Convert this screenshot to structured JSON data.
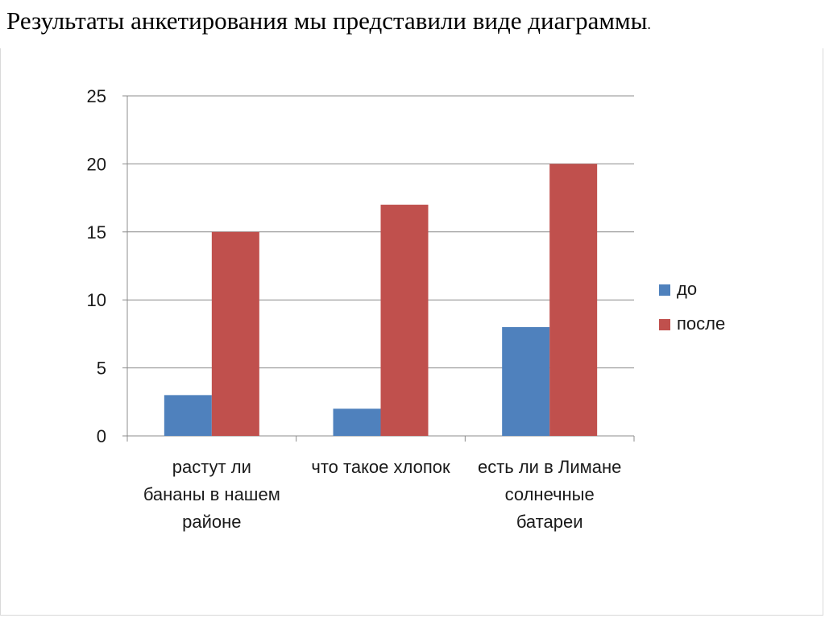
{
  "slide": {
    "heading_main": "Результаты анкетирования мы представили виде диаграммы",
    "heading_period": "."
  },
  "chart_data": {
    "type": "bar",
    "categories": [
      [
        "растут ли",
        "бананы в нашем",
        "районе"
      ],
      [
        "что такое хлопок"
      ],
      [
        "есть ли в Лимане",
        "солнечные",
        "батареи"
      ]
    ],
    "series": [
      {
        "name": "до",
        "values": [
          3,
          2,
          8
        ],
        "color": "#4f81bd"
      },
      {
        "name": "после",
        "values": [
          15,
          17,
          20
        ],
        "color": "#c0504d"
      }
    ],
    "ylim": [
      0,
      25
    ],
    "yticks": [
      0,
      5,
      10,
      15,
      20,
      25
    ],
    "grid": true,
    "legend": "right",
    "title": "",
    "xlabel": "",
    "ylabel": ""
  }
}
